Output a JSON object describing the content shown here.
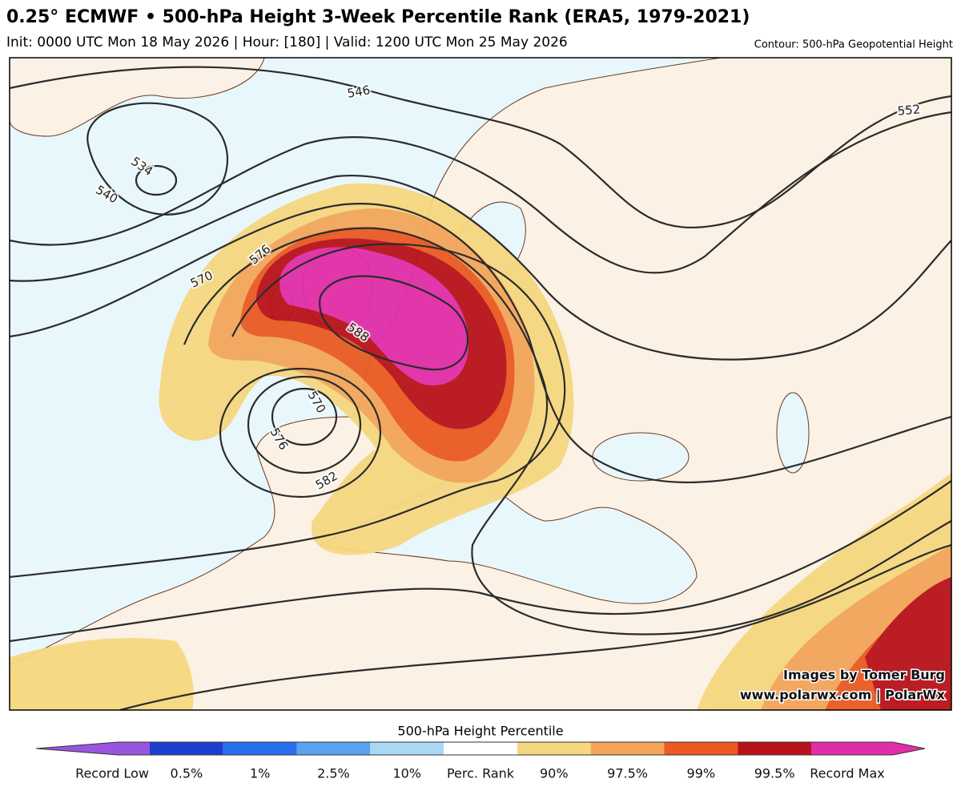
{
  "header": {
    "title": "0.25° ECMWF • 500-hPa Height 3-Week Percentile Rank (ERA5, 1979-2021)",
    "subtitle": "Init: 0000 UTC Mon 18 May 2026 | Hour: [180] | Valid: 1200 UTC Mon 25 May 2026",
    "contour_note": "Contour: 500-hPa Geopotential Height"
  },
  "map": {
    "contour_labels": [
      546,
      552,
      534,
      540,
      570,
      576,
      588,
      570,
      576,
      582
    ],
    "credit": [
      "Images by Tomer Burg",
      "www.polarwx.com | PolarWx"
    ]
  },
  "colorbar": {
    "title": "500-hPa Height Percentile",
    "labels": [
      "Record Low",
      "0.5%",
      "1%",
      "2.5%",
      "10%",
      "Perc. Rank",
      "90%",
      "97.5%",
      "99%",
      "99.5%",
      "Record Max"
    ],
    "colors": [
      "#9a55e0",
      "#1d3fcf",
      "#2a6ff0",
      "#5aa3f0",
      "#a9d8f5",
      "#ffffff",
      "#f5d77f",
      "#f3a55a",
      "#ea5a22",
      "#b8121a",
      "#e02ea8"
    ]
  }
}
